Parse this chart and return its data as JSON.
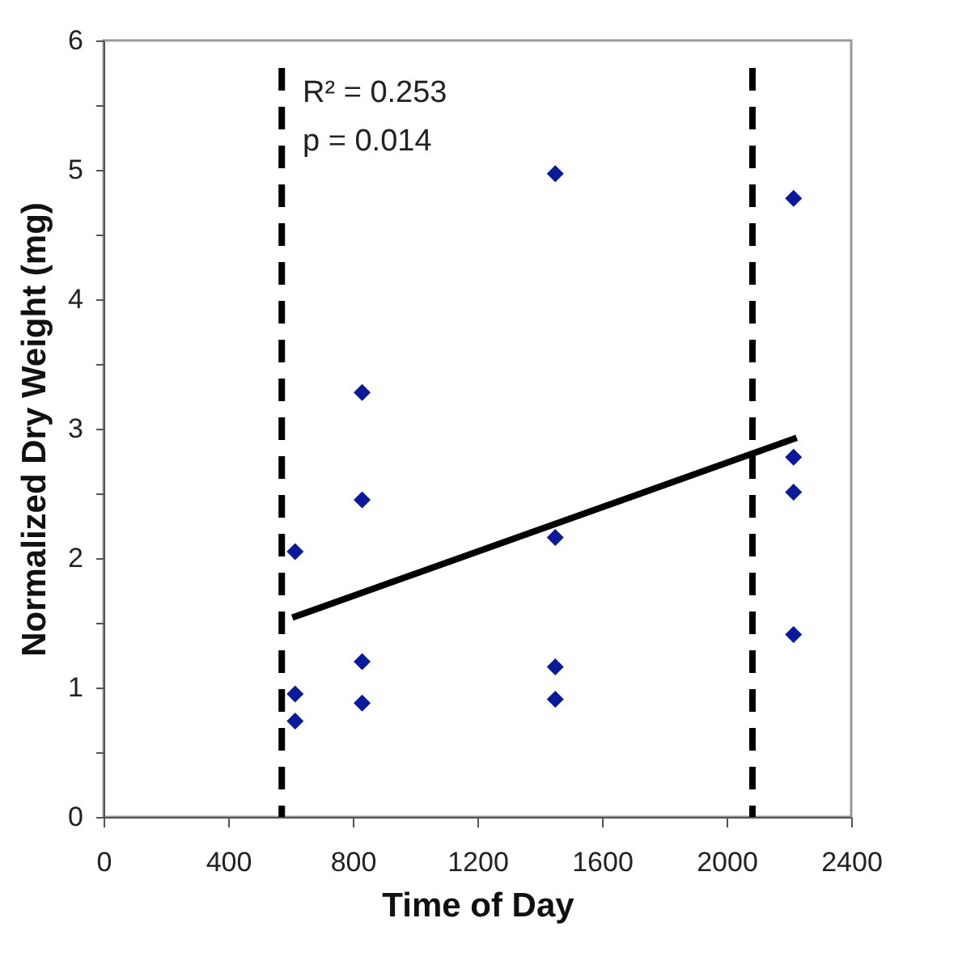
{
  "chart_data": {
    "type": "scatter",
    "xlabel": "Time of Day",
    "ylabel": "Normalized Dry Weight (mg)",
    "xlim": [
      0,
      2400
    ],
    "xticks": [
      0,
      400,
      800,
      1200,
      1600,
      2000,
      2400
    ],
    "ylim": [
      0,
      6
    ],
    "yticks": [
      0,
      {
        "value": 0.5,
        "label": null
      },
      1,
      {
        "value": 1.5,
        "label": null
      },
      2,
      {
        "value": 2.5,
        "label": null
      },
      3,
      {
        "value": 3.5,
        "label": null
      },
      4,
      {
        "value": 4.5,
        "label": null
      },
      5,
      {
        "value": 5.5,
        "label": null
      },
      6
    ],
    "grid": false,
    "marker": "diamond",
    "series": [
      {
        "color": "#0a1a9a",
        "x": [
          615,
          615,
          615,
          830,
          830,
          830,
          830,
          1450,
          1450,
          1450,
          1450,
          2215,
          2215,
          2215,
          2215
        ],
        "values": [
          2.05,
          0.95,
          0.74,
          3.28,
          2.45,
          1.2,
          0.88,
          4.97,
          2.16,
          1.16,
          0.91,
          4.78,
          2.78,
          2.51,
          1.41
        ]
      },
      {
        "type": "line",
        "color": "#000000",
        "line_style": "solid",
        "marker": "none",
        "x": [
          606,
          2225
        ],
        "values": [
          1.54,
          2.93
        ]
      }
    ],
    "ref_lines": [
      {
        "axis": "x",
        "value": 572,
        "color": "#000000",
        "line_style": "dashed"
      },
      {
        "axis": "x",
        "value": 2083,
        "color": "#000000",
        "line_style": "dashed"
      }
    ],
    "annotations": [
      "R² = 0.253",
      "p = 0.014"
    ]
  }
}
